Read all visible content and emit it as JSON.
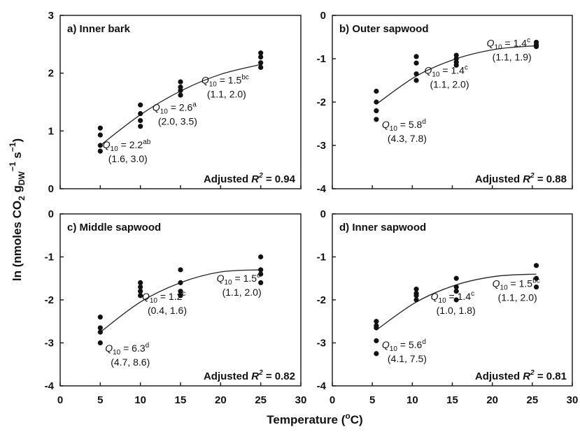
{
  "chart_data": [
    {
      "type": "scatter",
      "title": "a) Inner bark",
      "xlim": [
        0,
        30
      ],
      "ylim": [
        0,
        3
      ],
      "xticks": [
        0,
        5,
        10,
        15,
        20,
        25,
        30
      ],
      "yticks": [
        0,
        1,
        2,
        3
      ],
      "x_ticklabels": [
        "",
        "",
        "",
        "",
        "",
        "",
        ""
      ],
      "y_ticklabels": [
        "0",
        "1",
        "2",
        "3"
      ],
      "points": [
        {
          "x": 5,
          "y": 1.05
        },
        {
          "x": 5,
          "y": 0.93
        },
        {
          "x": 5,
          "y": 0.75
        },
        {
          "x": 5,
          "y": 0.65
        },
        {
          "x": 10,
          "y": 1.45
        },
        {
          "x": 10,
          "y": 1.3
        },
        {
          "x": 10,
          "y": 1.18
        },
        {
          "x": 10,
          "y": 1.08
        },
        {
          "x": 15,
          "y": 1.85
        },
        {
          "x": 15,
          "y": 1.76
        },
        {
          "x": 15,
          "y": 1.7
        },
        {
          "x": 15,
          "y": 1.62
        },
        {
          "x": 25,
          "y": 2.35
        },
        {
          "x": 25,
          "y": 2.28
        },
        {
          "x": 25,
          "y": 2.18
        },
        {
          "x": 25,
          "y": 2.1
        }
      ],
      "fit": [
        {
          "x": 5,
          "y": 0.75
        },
        {
          "x": 10,
          "y": 1.28
        },
        {
          "x": 15,
          "y": 1.69
        },
        {
          "x": 20,
          "y": 1.98
        },
        {
          "x": 25,
          "y": 2.15
        }
      ],
      "annotations": [
        {
          "x": 5.3,
          "y": 0.7,
          "q_label": "Q",
          "q_sub": "10",
          "q_value": " = 2.2",
          "q_sup": "ab",
          "ci": "(1.6, 3.0)"
        },
        {
          "x": 11.5,
          "y": 1.35,
          "q_label": "Q",
          "q_sub": "10",
          "q_value": " = 2.6",
          "q_sup": "a",
          "ci": "(2.0, 3.5)"
        },
        {
          "x": 17.6,
          "y": 1.82,
          "q_label": "Q",
          "q_sub": "10",
          "q_value": " = 1.5",
          "q_sup": "bc",
          "ci": "(1.1, 2.0)"
        }
      ],
      "r2": {
        "label": "Adjusted ",
        "italic": "R",
        "sup": "2",
        "value": " = 0.94"
      }
    },
    {
      "type": "scatter",
      "title": "b) Outer sapwood",
      "xlim": [
        0,
        30
      ],
      "ylim": [
        -4,
        0
      ],
      "xticks": [
        0,
        5,
        10,
        15,
        20,
        25,
        30
      ],
      "yticks": [
        -4,
        -3,
        -2,
        -1,
        0
      ],
      "x_ticklabels": [
        "",
        "",
        "",
        "",
        "",
        "",
        ""
      ],
      "y_ticklabels": [
        "-4",
        "-3",
        "-2",
        "-1",
        "0"
      ],
      "points": [
        {
          "x": 5.5,
          "y": -1.75
        },
        {
          "x": 5.5,
          "y": -2.0
        },
        {
          "x": 5.5,
          "y": -2.2
        },
        {
          "x": 5.5,
          "y": -2.4
        },
        {
          "x": 10.5,
          "y": -0.95
        },
        {
          "x": 10.5,
          "y": -1.1
        },
        {
          "x": 10.5,
          "y": -1.35
        },
        {
          "x": 10.5,
          "y": -1.5
        },
        {
          "x": 15.5,
          "y": -0.92
        },
        {
          "x": 15.5,
          "y": -1.0
        },
        {
          "x": 15.5,
          "y": -1.08
        },
        {
          "x": 15.5,
          "y": -1.15
        },
        {
          "x": 25.5,
          "y": -0.62
        },
        {
          "x": 25.5,
          "y": -0.68
        },
        {
          "x": 25.5,
          "y": -0.72
        }
      ],
      "fit": [
        {
          "x": 5.5,
          "y": -2.05
        },
        {
          "x": 10.5,
          "y": -1.4
        },
        {
          "x": 15.5,
          "y": -1.0
        },
        {
          "x": 20.5,
          "y": -0.78
        },
        {
          "x": 25.5,
          "y": -0.7
        }
      ],
      "annotations": [
        {
          "x": 6.2,
          "y": -2.6,
          "q_label": "Q",
          "q_sub": "10",
          "q_value": " = 5.8",
          "q_sup": "d",
          "ci": "(4.3, 7.8)"
        },
        {
          "x": 11.5,
          "y": -1.35,
          "q_label": "Q",
          "q_sub": "10",
          "q_value": " = 1.4",
          "q_sup": "c",
          "ci": "(1.1, 2.0)"
        },
        {
          "x": 19.3,
          "y": -0.72,
          "q_label": "Q",
          "q_sub": "10",
          "q_value": " = 1.4",
          "q_sup": "c",
          "ci": "(1.1, 1.9)"
        }
      ],
      "r2": {
        "label": "Adjusted ",
        "italic": "R",
        "sup": "2",
        "value": " = 0.88"
      }
    },
    {
      "type": "scatter",
      "title": "c) Middle sapwood",
      "xlim": [
        0,
        30
      ],
      "ylim": [
        -4,
        0
      ],
      "xticks": [
        0,
        5,
        10,
        15,
        20,
        25,
        30
      ],
      "yticks": [
        -4,
        -3,
        -2,
        -1,
        0
      ],
      "x_ticklabels": [
        "0",
        "5",
        "10",
        "15",
        "20",
        "25",
        "30"
      ],
      "y_ticklabels": [
        "-4",
        "-3",
        "-2",
        "-1",
        "0"
      ],
      "points": [
        {
          "x": 5,
          "y": -2.4
        },
        {
          "x": 5,
          "y": -2.65
        },
        {
          "x": 5,
          "y": -2.75
        },
        {
          "x": 5,
          "y": -3.0
        },
        {
          "x": 10,
          "y": -1.6
        },
        {
          "x": 10,
          "y": -1.7
        },
        {
          "x": 10,
          "y": -1.8
        },
        {
          "x": 10,
          "y": -1.9
        },
        {
          "x": 15,
          "y": -1.3
        },
        {
          "x": 15,
          "y": -1.6
        },
        {
          "x": 15,
          "y": -1.8
        },
        {
          "x": 15,
          "y": -1.9
        },
        {
          "x": 25,
          "y": -1.0
        },
        {
          "x": 25,
          "y": -1.3
        },
        {
          "x": 25,
          "y": -1.4
        },
        {
          "x": 25,
          "y": -1.6
        }
      ],
      "fit": [
        {
          "x": 5,
          "y": -2.75
        },
        {
          "x": 10,
          "y": -2.05
        },
        {
          "x": 15,
          "y": -1.6
        },
        {
          "x": 20,
          "y": -1.35
        },
        {
          "x": 25,
          "y": -1.3
        }
      ],
      "annotations": [
        {
          "x": 5.6,
          "y": -3.2,
          "q_label": "Q",
          "q_sub": "10",
          "q_value": " = 6.3",
          "q_sup": "d",
          "ci": "(4.7, 8.6)"
        },
        {
          "x": 10.2,
          "y": -2.0,
          "q_label": "Q",
          "q_sub": "10",
          "q_value": " = 1.2",
          "q_sup": "c",
          "ci": "(0.4, 1.6)"
        },
        {
          "x": 19.5,
          "y": -1.58,
          "q_label": "Q",
          "q_sub": "10",
          "q_value": " = 1.5",
          "q_sup": "c",
          "ci": "(1.1, 2.0)"
        }
      ],
      "r2": {
        "label": "Adjusted ",
        "italic": "R",
        "sup": "2",
        "value": " = 0.82"
      }
    },
    {
      "type": "scatter",
      "title": "d) Inner sapwood",
      "xlim": [
        0,
        30
      ],
      "ylim": [
        -4,
        0
      ],
      "xticks": [
        0,
        5,
        10,
        15,
        20,
        25,
        30
      ],
      "yticks": [
        -4,
        -3,
        -2,
        -1,
        0
      ],
      "x_ticklabels": [
        "0",
        "5",
        "10",
        "15",
        "20",
        "25",
        "30"
      ],
      "y_ticklabels": [
        "-4",
        "-3",
        "-2",
        "-1",
        "0"
      ],
      "points": [
        {
          "x": 5.5,
          "y": -2.5
        },
        {
          "x": 5.5,
          "y": -2.6
        },
        {
          "x": 5.5,
          "y": -2.65
        },
        {
          "x": 5.5,
          "y": -2.95
        },
        {
          "x": 5.5,
          "y": -3.25
        },
        {
          "x": 10.5,
          "y": -1.75
        },
        {
          "x": 10.5,
          "y": -1.85
        },
        {
          "x": 10.5,
          "y": -1.9
        },
        {
          "x": 10.5,
          "y": -2.0
        },
        {
          "x": 15.5,
          "y": -1.5
        },
        {
          "x": 15.5,
          "y": -1.7
        },
        {
          "x": 15.5,
          "y": -1.8
        },
        {
          "x": 15.5,
          "y": -2.0
        },
        {
          "x": 25.5,
          "y": -1.2
        },
        {
          "x": 25.5,
          "y": -1.5
        },
        {
          "x": 25.5,
          "y": -1.7
        }
      ],
      "fit": [
        {
          "x": 5.5,
          "y": -2.7
        },
        {
          "x": 10.5,
          "y": -2.05
        },
        {
          "x": 15.5,
          "y": -1.65
        },
        {
          "x": 20.5,
          "y": -1.45
        },
        {
          "x": 25.5,
          "y": -1.4
        }
      ],
      "annotations": [
        {
          "x": 6.2,
          "y": -3.12,
          "q_label": "Q",
          "q_sub": "10",
          "q_value": " = 5.6",
          "q_sup": "d",
          "ci": "(4.1, 7.5)"
        },
        {
          "x": 12.3,
          "y": -2.0,
          "q_label": "Q",
          "q_sub": "10",
          "q_value": " = 1.4",
          "q_sup": "c",
          "ci": "(1.0, 1.8)"
        },
        {
          "x": 20.0,
          "y": -1.7,
          "q_label": "Q",
          "q_sub": "10",
          "q_value": " = 1.5",
          "q_sup": "bc",
          "ci": "(1.1, 2.0)"
        }
      ],
      "r2": {
        "label": "Adjusted ",
        "italic": "R",
        "sup": "2",
        "value": " = 0.81"
      }
    }
  ],
  "axes": {
    "ylabel": {
      "prefix": "ln (nmoles CO",
      "sub1": "2",
      "mid": "  g",
      "sub2": "DW",
      "sup1": "−1",
      "mid2": " s",
      "sup2": "−1",
      "suffix": ")"
    },
    "xlabel": {
      "prefix": "Temperature (",
      "sup": "o",
      "suffix": "C)"
    }
  }
}
